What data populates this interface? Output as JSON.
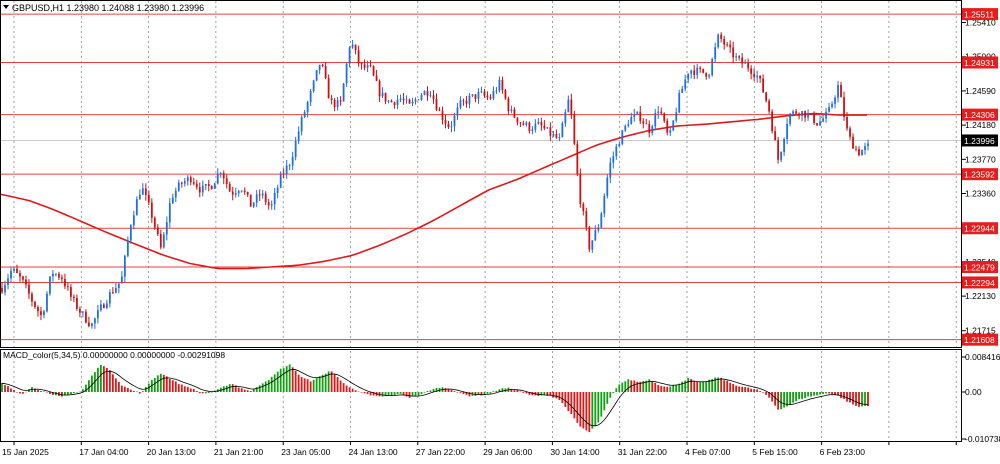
{
  "header": {
    "symbol_line": "GBPUSD,H1  1.23980 1.24088 1.23980 1.23996"
  },
  "macd": {
    "label": "MACD_color(5,34,5) 0.00000000 0.00000000 -0.00291098"
  },
  "colors": {
    "up_candle": "#1e6fe0",
    "down_candle": "#d01010",
    "ma_line": "#e01818",
    "level_line": "#e84040",
    "level_label_bg": "#e81c1c",
    "current_price_bg": "#000000",
    "macd_up": "#12a012",
    "macd_down": "#e01818",
    "signal_line": "#000000",
    "grid": "#7a7a7a"
  },
  "chart_data": {
    "type": "candlestick",
    "symbol": "GBPUSD",
    "timeframe": "H1",
    "ohlc_last": {
      "open": 1.2398,
      "high": 1.24088,
      "low": 1.2398,
      "close": 1.23996
    },
    "current_price": 1.23996,
    "price_ylim": [
      1.2152,
      1.2568
    ],
    "price_ticks": [
      "1.25410",
      "1.25000",
      "1.24590",
      "1.24180",
      "1.23770",
      "1.23360",
      "1.22540",
      "1.22130",
      "1.21715"
    ],
    "levels": [
      "1.25511",
      "1.24931",
      "1.24306",
      "1.23592",
      "1.22944",
      "1.22479",
      "1.22294",
      "1.21608"
    ],
    "x_labels": [
      "15 Jan 2025",
      "17 Jan 04:00",
      "20 Jan 13:00",
      "21 Jan 21:00",
      "23 Jan 05:00",
      "24 Jan 13:00",
      "27 Jan 22:00",
      "29 Jan 06:00",
      "30 Jan 14:00",
      "31 Jan 22:00",
      "4 Feb 07:00",
      "5 Feb 15:00",
      "6 Feb 23:00"
    ],
    "close_path": [
      1.2223,
      1.2245,
      1.2232,
      1.2208,
      1.2188,
      1.2242,
      1.2236,
      1.221,
      1.2192,
      1.2178,
      1.22,
      1.2218,
      1.2232,
      1.2305,
      1.2345,
      1.2312,
      1.2268,
      1.2332,
      1.2348,
      1.2355,
      1.234,
      1.2345,
      1.2365,
      1.2336,
      1.2345,
      1.2322,
      1.2336,
      1.2318,
      1.2355,
      1.2375,
      1.242,
      1.2455,
      1.2495,
      1.2445,
      1.2442,
      1.252,
      1.2488,
      1.2485,
      1.2455,
      1.2445,
      1.245,
      1.244,
      1.2455,
      1.246,
      1.2432,
      1.2415,
      1.2442,
      1.245,
      1.2455,
      1.245,
      1.2468,
      1.2435,
      1.2422,
      1.2415,
      1.2418,
      1.2408,
      1.24,
      1.2452,
      1.2335,
      1.2272,
      1.23,
      1.2368,
      1.24,
      1.2425,
      1.243,
      1.2412,
      1.244,
      1.24,
      1.245,
      1.2485,
      1.2482,
      1.248,
      1.2525,
      1.2508,
      1.2495,
      1.2488,
      1.2475,
      1.244,
      1.2375,
      1.243,
      1.2435,
      1.243,
      1.242,
      1.2432,
      1.2465,
      1.2405,
      1.2385,
      1.2392
    ],
    "ma_path": [
      1.2335,
      1.2328,
      1.2316,
      1.2302,
      1.2288,
      1.2275,
      1.2262,
      1.2252,
      1.2246,
      1.2246,
      1.2248,
      1.225,
      1.2255,
      1.2262,
      1.2274,
      1.2288,
      1.2304,
      1.2322,
      1.234,
      1.2352,
      1.2366,
      1.238,
      1.2394,
      1.2404,
      1.2412,
      1.2417,
      1.2419,
      1.2422,
      1.2425,
      1.2429,
      1.2432,
      1.243,
      1.243
    ],
    "macd_ylim": [
      -0.0109,
      0.0086
    ],
    "macd_ticks": [
      "0.0084161",
      "0.00",
      "-0.0107387"
    ],
    "macd_path": [
      0.0022,
      0.0008,
      -0.0005,
      0.0012,
      0.0003,
      -0.0008,
      -0.0012,
      -0.0004,
      0.0002,
      0.004,
      0.0072,
      0.005,
      0.0018,
      0.0005,
      -0.0004,
      0.003,
      0.0048,
      0.0032,
      0.0018,
      0.001,
      -0.0004,
      -0.0002,
      0.001,
      0.0022,
      0.001,
      0.0002,
      0.002,
      0.0035,
      0.0058,
      0.007,
      0.0038,
      0.0028,
      0.004,
      0.0055,
      0.003,
      0.001,
      -0.0002,
      -0.0008,
      -0.0012,
      -0.001,
      -0.0005,
      -0.0014,
      -0.0008,
      0.0005,
      0.0012,
      0.0008,
      -0.0003,
      -0.001,
      -0.0008,
      -0.0004,
      0.0008,
      0.001,
      0.0002,
      -0.0008,
      -0.001,
      -0.0008,
      -0.002,
      -0.005,
      -0.0086,
      -0.0102,
      -0.0075,
      -0.002,
      0.002,
      0.0032,
      0.0025,
      0.0032,
      0.0018,
      0.0012,
      0.0022,
      0.0035,
      0.0022,
      0.003,
      0.0038,
      0.0025,
      0.0015,
      0.001,
      0.0005,
      -0.0012,
      -0.0045,
      -0.0035,
      -0.002,
      -0.0012,
      -0.0008,
      -0.0002,
      -0.001,
      -0.0025,
      -0.0038,
      -0.0034
    ]
  }
}
